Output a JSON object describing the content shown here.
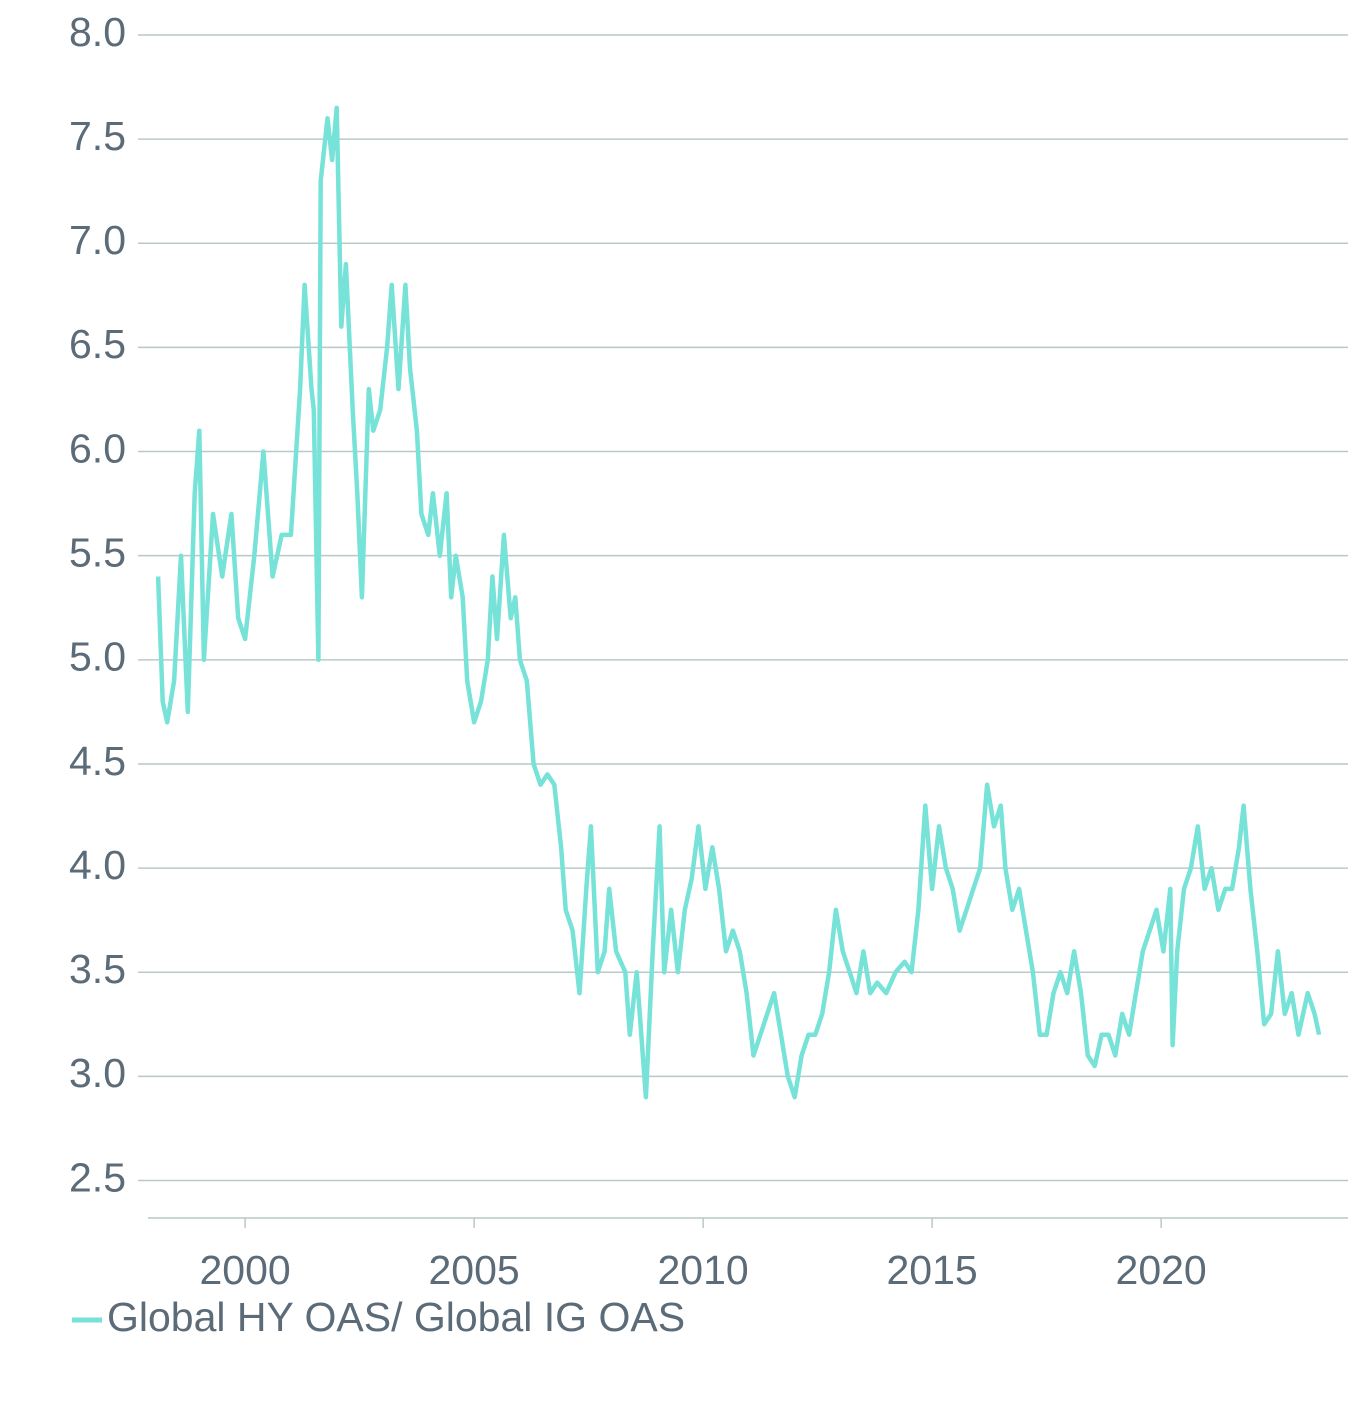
{
  "chart_data": {
    "type": "line",
    "series": [
      {
        "name": "Global HY OAS/ Global IG OAS",
        "color": "#76e2d8",
        "x": [
          1998.1,
          1998.2,
          1998.3,
          1998.45,
          1998.6,
          1998.75,
          1998.9,
          1999.0,
          1999.1,
          1999.3,
          1999.5,
          1999.7,
          1999.85,
          2000.0,
          2000.2,
          2000.4,
          2000.5,
          2000.6,
          2000.8,
          2001.0,
          2001.2,
          2001.3,
          2001.45,
          2001.5,
          2001.6,
          2001.65,
          2001.8,
          2001.9,
          2002.0,
          2002.1,
          2002.2,
          2002.35,
          2002.45,
          2002.55,
          2002.7,
          2002.8,
          2002.95,
          2003.1,
          2003.2,
          2003.35,
          2003.5,
          2003.6,
          2003.75,
          2003.85,
          2004.0,
          2004.1,
          2004.25,
          2004.4,
          2004.5,
          2004.6,
          2004.75,
          2004.85,
          2005.0,
          2005.15,
          2005.3,
          2005.4,
          2005.5,
          2005.65,
          2005.8,
          2005.9,
          2006.0,
          2006.15,
          2006.3,
          2006.45,
          2006.6,
          2006.75,
          2006.9,
          2007.0,
          2007.15,
          2007.3,
          2007.45,
          2007.55,
          2007.7,
          2007.85,
          2007.95,
          2008.1,
          2008.3,
          2008.4,
          2008.55,
          2008.65,
          2008.75,
          2008.9,
          2009.05,
          2009.15,
          2009.3,
          2009.45,
          2009.6,
          2009.75,
          2009.9,
          2010.05,
          2010.2,
          2010.35,
          2010.5,
          2010.65,
          2010.8,
          2010.95,
          2011.1,
          2011.25,
          2011.4,
          2011.55,
          2011.7,
          2011.85,
          2012.0,
          2012.15,
          2012.3,
          2012.45,
          2012.6,
          2012.75,
          2012.9,
          2013.05,
          2013.2,
          2013.35,
          2013.5,
          2013.65,
          2013.8,
          2014.0,
          2014.2,
          2014.4,
          2014.55,
          2014.7,
          2014.85,
          2015.0,
          2015.15,
          2015.3,
          2015.45,
          2015.6,
          2015.75,
          2015.9,
          2016.05,
          2016.2,
          2016.35,
          2016.5,
          2016.6,
          2016.75,
          2016.9,
          2017.05,
          2017.2,
          2017.35,
          2017.5,
          2017.65,
          2017.8,
          2017.95,
          2018.1,
          2018.25,
          2018.4,
          2018.55,
          2018.7,
          2018.85,
          2019.0,
          2019.15,
          2019.3,
          2019.45,
          2019.6,
          2019.75,
          2019.9,
          2020.05,
          2020.2,
          2020.25,
          2020.35,
          2020.5,
          2020.65,
          2020.8,
          2020.95,
          2021.1,
          2021.25,
          2021.4,
          2021.55,
          2021.7,
          2021.8,
          2021.95,
          2022.1,
          2022.25,
          2022.4,
          2022.55,
          2022.7,
          2022.85,
          2023.0,
          2023.1,
          2023.2,
          2023.35,
          2023.45
        ],
        "values": [
          5.4,
          4.8,
          4.7,
          4.9,
          5.5,
          4.75,
          5.8,
          6.1,
          5.0,
          5.7,
          5.4,
          5.7,
          5.2,
          5.1,
          5.5,
          6.0,
          5.7,
          5.4,
          5.6,
          5.6,
          6.3,
          6.8,
          6.3,
          6.2,
          5.0,
          7.3,
          7.6,
          7.4,
          7.65,
          6.6,
          6.9,
          6.2,
          5.8,
          5.3,
          6.3,
          6.1,
          6.2,
          6.5,
          6.8,
          6.3,
          6.8,
          6.4,
          6.1,
          5.7,
          5.6,
          5.8,
          5.5,
          5.8,
          5.3,
          5.5,
          5.3,
          4.9,
          4.7,
          4.8,
          5.0,
          5.4,
          5.1,
          5.6,
          5.2,
          5.3,
          5.0,
          4.9,
          4.5,
          4.4,
          4.45,
          4.4,
          4.1,
          3.8,
          3.7,
          3.4,
          3.9,
          4.2,
          3.5,
          3.6,
          3.9,
          3.6,
          3.5,
          3.2,
          3.5,
          3.2,
          2.9,
          3.6,
          4.2,
          3.5,
          3.8,
          3.5,
          3.8,
          3.95,
          4.2,
          3.9,
          4.1,
          3.9,
          3.6,
          3.7,
          3.6,
          3.4,
          3.1,
          3.2,
          3.3,
          3.4,
          3.2,
          3.0,
          2.9,
          3.1,
          3.2,
          3.2,
          3.3,
          3.5,
          3.8,
          3.6,
          3.5,
          3.4,
          3.6,
          3.4,
          3.45,
          3.4,
          3.5,
          3.55,
          3.5,
          3.8,
          4.3,
          3.9,
          4.2,
          4.0,
          3.9,
          3.7,
          3.8,
          3.9,
          4.0,
          4.4,
          4.2,
          4.3,
          4.0,
          3.8,
          3.9,
          3.7,
          3.5,
          3.2,
          3.2,
          3.4,
          3.5,
          3.4,
          3.6,
          3.4,
          3.1,
          3.05,
          3.2,
          3.2,
          3.1,
          3.3,
          3.2,
          3.4,
          3.6,
          3.7,
          3.8,
          3.6,
          3.9,
          3.15,
          3.6,
          3.9,
          4.0,
          4.2,
          3.9,
          4.0,
          3.8,
          3.9,
          3.9,
          4.1,
          4.3,
          3.9,
          3.6,
          3.25,
          3.3,
          3.6,
          3.3,
          3.4,
          3.2,
          3.3,
          3.4,
          3.3,
          3.2
        ]
      }
    ],
    "xlim": [
      1997.88,
      2024.08
    ],
    "xticks": [
      2000,
      2005,
      2010,
      2015,
      2020
    ],
    "ylim": [
      2.32,
      8.0
    ],
    "yticks": [
      {
        "value": 2.5,
        "label": "2.5"
      },
      {
        "value": 3,
        "label": "3.0"
      },
      {
        "value": 3.5,
        "label": "3.5"
      },
      {
        "value": 4,
        "label": "4.0"
      },
      {
        "value": 4.5,
        "label": "4.5"
      },
      {
        "value": 5,
        "label": "5.0"
      },
      {
        "value": 5.5,
        "label": "5.5"
      },
      {
        "value": 6,
        "label": "6.0"
      },
      {
        "value": 6.5,
        "label": "6.5"
      },
      {
        "value": 7,
        "label": "7.0"
      },
      {
        "value": 7.5,
        "label": "7.5"
      },
      {
        "value": 8,
        "label": "8.0"
      }
    ],
    "grid": true
  }
}
